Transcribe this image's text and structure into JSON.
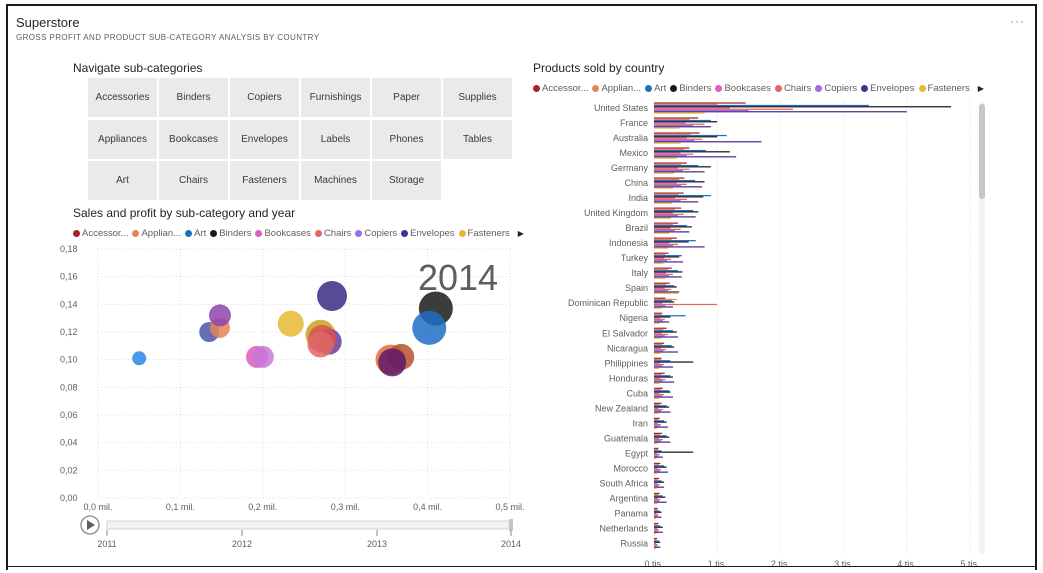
{
  "report": {
    "title": "Superstore",
    "subtitle": "GROSS PROFIT AND PRODUCT SUB-CATEGORY ANALYSIS BY COUNTRY",
    "more_label": "···"
  },
  "slicer": {
    "title": "Navigate sub-categories",
    "rows": [
      [
        "Accessories",
        "Binders",
        "Copiers",
        "Furnishings",
        "Paper",
        "Supplies"
      ],
      [
        "Appliances",
        "Bookcases",
        "Envelopes",
        "Labels",
        "Phones",
        "Tables"
      ],
      [
        "Art",
        "Chairs",
        "Fasteners",
        "Machines",
        "Storage"
      ]
    ]
  },
  "legend": [
    {
      "label": "Accessor...",
      "color": "#a4262c"
    },
    {
      "label": "Applian...",
      "color": "#e8825b"
    },
    {
      "label": "Art",
      "color": "#1f6fc5"
    },
    {
      "label": "Binders",
      "color": "#1a1a1a"
    },
    {
      "label": "Bookcases",
      "color": "#e05cc0"
    },
    {
      "label": "Chairs",
      "color": "#e06666"
    },
    {
      "label": "Copiers",
      "color": "#9b6fe0"
    },
    {
      "label": "Envelopes",
      "color": "#4b2d91"
    },
    {
      "label": "Fasteners",
      "color": "#e6b933"
    }
  ],
  "legend_more_label": "▶",
  "chart_data": [
    {
      "type": "scatter",
      "title": "Sales and profit by sub-category and year",
      "play_axis_label": "2014",
      "x_ticks": [
        "0,0 mil.",
        "0,1 mil.",
        "0,2 mil.",
        "0,3 mil.",
        "0,4 mil.",
        "0,5 mil."
      ],
      "y_ticks": [
        "0,00",
        "0,02",
        "0,04",
        "0,06",
        "0,08",
        "0,10",
        "0,12",
        "0,14",
        "0,16",
        "0,18"
      ],
      "xlim": [
        0,
        0.5
      ],
      "ylim": [
        0,
        0.18
      ],
      "timeline_labels": [
        "2011",
        "2012",
        "2013",
        "2014"
      ],
      "points": [
        {
          "x": 0.05,
          "y": 0.101,
          "r": 7,
          "color": "#2b88e6"
        },
        {
          "x": 0.135,
          "y": 0.12,
          "r": 10,
          "color": "#4b56a8"
        },
        {
          "x": 0.148,
          "y": 0.123,
          "r": 10,
          "color": "#e8825b"
        },
        {
          "x": 0.148,
          "y": 0.132,
          "r": 11,
          "color": "#8e44ad"
        },
        {
          "x": 0.193,
          "y": 0.102,
          "r": 11,
          "color": "#e05cc0"
        },
        {
          "x": 0.2,
          "y": 0.102,
          "r": 11,
          "color": "#c878d8"
        },
        {
          "x": 0.234,
          "y": 0.126,
          "r": 13,
          "color": "#e6b933"
        },
        {
          "x": 0.27,
          "y": 0.118,
          "r": 15,
          "color": "#c9a227"
        },
        {
          "x": 0.28,
          "y": 0.113,
          "r": 13,
          "color": "#6a3d9a"
        },
        {
          "x": 0.272,
          "y": 0.115,
          "r": 14,
          "color": "#d9534f"
        },
        {
          "x": 0.27,
          "y": 0.111,
          "r": 13,
          "color": "#e06666"
        },
        {
          "x": 0.284,
          "y": 0.146,
          "r": 15,
          "color": "#3c2a86"
        },
        {
          "x": 0.355,
          "y": 0.1,
          "r": 15,
          "color": "#e46c3c"
        },
        {
          "x": 0.368,
          "y": 0.102,
          "r": 13,
          "color": "#b5532e"
        },
        {
          "x": 0.357,
          "y": 0.098,
          "r": 14,
          "color": "#5e1a6b"
        },
        {
          "x": 0.41,
          "y": 0.137,
          "r": 17,
          "color": "#1a1a1a"
        },
        {
          "x": 0.402,
          "y": 0.123,
          "r": 17,
          "color": "#1f6fc5"
        }
      ]
    },
    {
      "type": "bar",
      "title": "Products sold by country",
      "x_ticks": [
        "0 tis.",
        "1 tis.",
        "2 tis.",
        "3 tis.",
        "4 tis.",
        "5 tis."
      ],
      "xlim": [
        0,
        5000
      ],
      "categories": [
        "United States",
        "France",
        "Australia",
        "Mexico",
        "Germany",
        "China",
        "India",
        "United Kingdom",
        "Brazil",
        "Indonesia",
        "Turkey",
        "Italy",
        "Spain",
        "Dominican Republic",
        "Nigeria",
        "El Salvador",
        "Nicaragua",
        "Philippines",
        "Honduras",
        "Cuba",
        "New Zealand",
        "Iran",
        "Guatemala",
        "Egypt",
        "Morocco",
        "South Africa",
        "Argentina",
        "Panama",
        "Netherlands",
        "Russia"
      ],
      "series": [
        {
          "name": "Accessories",
          "color": "#a4262c",
          "values": [
            1450,
            700,
            720,
            560,
            520,
            480,
            470,
            430,
            380,
            360,
            230,
            280,
            250,
            180,
            130,
            200,
            160,
            120,
            170,
            140,
            120,
            90,
            130,
            70,
            100,
            80,
            90,
            60,
            70,
            50
          ]
        },
        {
          "name": "Appliances",
          "color": "#e8825b",
          "values": [
            1000,
            560,
            580,
            480,
            430,
            400,
            390,
            330,
            300,
            280,
            180,
            220,
            190,
            360,
            120,
            150,
            130,
            110,
            120,
            110,
            90,
            70,
            90,
            60,
            80,
            60,
            70,
            50,
            60,
            40
          ]
        },
        {
          "name": "Art",
          "color": "#1f6fc5",
          "values": [
            3400,
            900,
            1150,
            820,
            700,
            650,
            900,
            620,
            520,
            660,
            440,
            380,
            320,
            280,
            500,
            300,
            280,
            260,
            260,
            240,
            200,
            160,
            200,
            120,
            160,
            120,
            140,
            90,
            100,
            80
          ]
        },
        {
          "name": "Binders",
          "color": "#1a1a1a",
          "values": [
            4700,
            1000,
            1000,
            1200,
            900,
            800,
            780,
            700,
            600,
            550,
            400,
            450,
            360,
            320,
            260,
            360,
            320,
            620,
            300,
            260,
            240,
            200,
            240,
            620,
            200,
            160,
            180,
            120,
            140,
            100
          ]
        },
        {
          "name": "Bookcases",
          "color": "#e05cc0",
          "values": [
            1200,
            500,
            520,
            420,
            380,
            360,
            330,
            300,
            260,
            240,
            160,
            190,
            170,
            130,
            100,
            120,
            110,
            90,
            100,
            90,
            70,
            60,
            80,
            50,
            60,
            50,
            60,
            40,
            50,
            30
          ]
        },
        {
          "name": "Chairs",
          "color": "#e06666",
          "values": [
            2200,
            800,
            760,
            620,
            560,
            520,
            520,
            470,
            420,
            380,
            270,
            300,
            270,
            1000,
            170,
            220,
            190,
            160,
            180,
            160,
            140,
            110,
            140,
            90,
            110,
            90,
            100,
            70,
            80,
            60
          ]
        },
        {
          "name": "Copiers",
          "color": "#9b6fe0",
          "values": [
            1500,
            620,
            640,
            520,
            460,
            430,
            420,
            380,
            330,
            300,
            210,
            240,
            220,
            180,
            140,
            170,
            150,
            130,
            140,
            130,
            110,
            90,
            110,
            70,
            90,
            70,
            80,
            60,
            60,
            50
          ]
        },
        {
          "name": "Envelopes",
          "color": "#4b2d91",
          "values": [
            4000,
            900,
            1700,
            1300,
            800,
            760,
            700,
            660,
            560,
            800,
            460,
            440,
            400,
            300,
            240,
            380,
            380,
            300,
            320,
            300,
            260,
            220,
            260,
            140,
            220,
            160,
            200,
            120,
            140,
            100
          ]
        },
        {
          "name": "Fasteners",
          "color": "#e6b933",
          "values": [
            800,
            400,
            420,
            360,
            320,
            300,
            290,
            270,
            240,
            220,
            150,
            180,
            380,
            120,
            90,
            110,
            100,
            80,
            90,
            80,
            70,
            50,
            60,
            40,
            50,
            40,
            50,
            30,
            40,
            30
          ]
        }
      ]
    }
  ]
}
